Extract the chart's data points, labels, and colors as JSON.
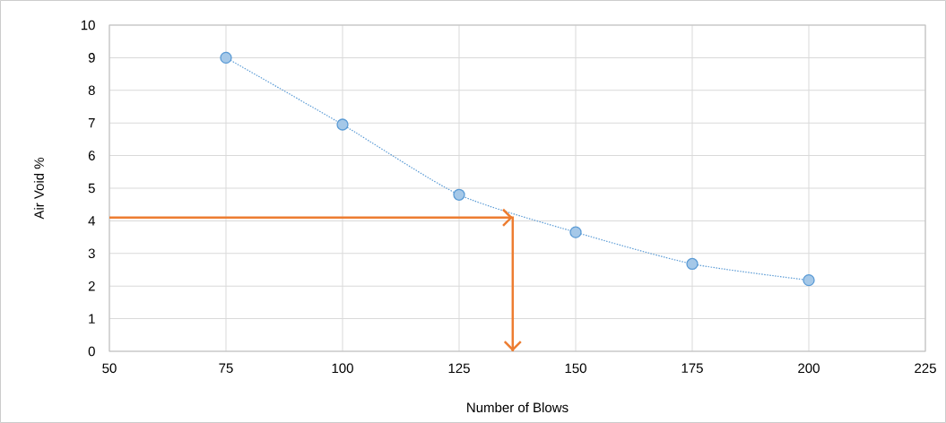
{
  "chart_data": {
    "type": "line",
    "xlabel": "Number of Blows",
    "ylabel": "Air Void %",
    "xlim": [
      50,
      225
    ],
    "xticks": [
      50,
      75,
      100,
      125,
      150,
      175,
      200,
      225
    ],
    "ylim": [
      0,
      10
    ],
    "yticks": [
      0,
      1,
      2,
      3,
      4,
      5,
      6,
      7,
      8,
      9,
      10
    ],
    "grid": true,
    "series": [
      {
        "x": [
          75,
          100,
          125,
          150,
          175,
          200
        ],
        "values": [
          9.0,
          6.95,
          4.8,
          3.65,
          2.68,
          2.18
        ],
        "color": "#5b9bd5",
        "marker": "circle",
        "line_style": "dotted"
      },
      {
        "x": [
          50,
          136.5,
          136.5
        ],
        "values": [
          4.1,
          4.1,
          0
        ],
        "color": "#ed7d31",
        "marker": "none",
        "line_style": "solid"
      }
    ]
  }
}
